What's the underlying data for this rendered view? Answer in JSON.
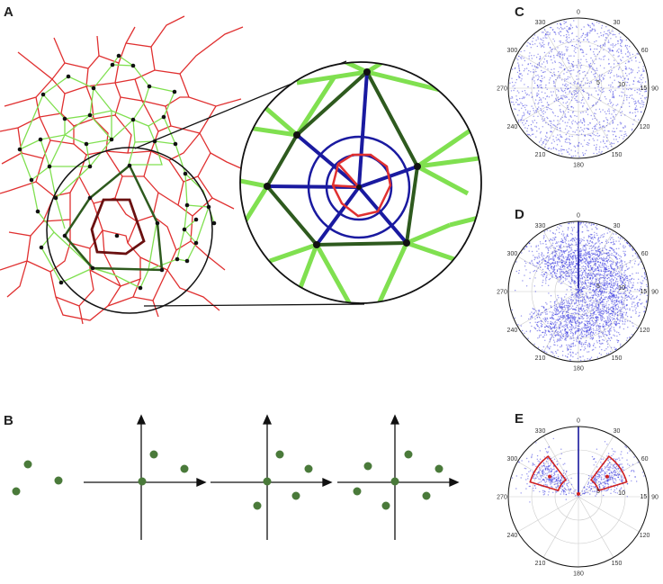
{
  "panels": {
    "A": "A",
    "B": "B",
    "C": "C",
    "D": "D",
    "E": "E"
  },
  "polar": {
    "angle_labels": [
      "0",
      "30",
      "60",
      "90",
      "120",
      "150",
      "180",
      "210",
      "240",
      "270",
      "300",
      "330"
    ],
    "radius_labels": [
      "5",
      "10",
      "15"
    ]
  },
  "colors": {
    "voronoi": "#e03030",
    "delaunay": "#80e050",
    "dark_green": "#2e5a1e",
    "dark_red": "#6a1010",
    "blue": "#1a1aa0",
    "point": "#111111",
    "scatter_point": "#4a7a3a"
  }
}
